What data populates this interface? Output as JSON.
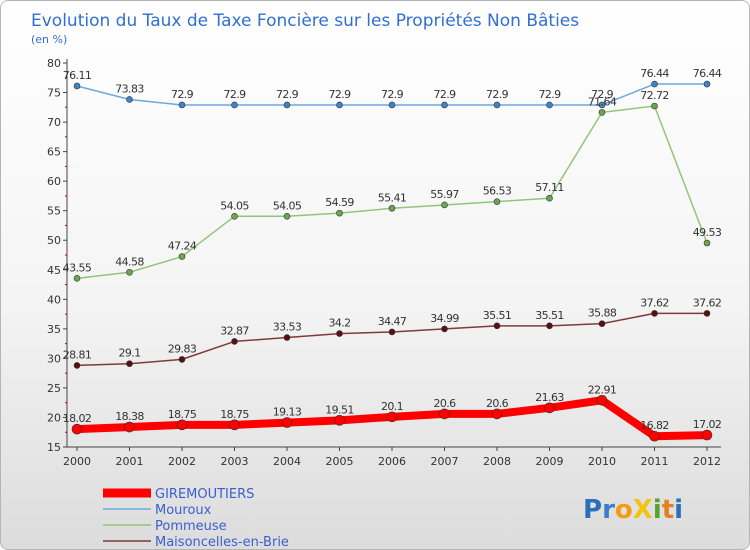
{
  "chart_data": {
    "type": "line",
    "title": "Evolution du Taux de Taxe Foncière sur les Propriétés Non Bâties",
    "subtitle": "(en %)",
    "x": [
      "2000",
      "2001",
      "2002",
      "2003",
      "2004",
      "2005",
      "2006",
      "2007",
      "2008",
      "2009",
      "2010",
      "2011",
      "2012"
    ],
    "ylim": [
      15,
      80
    ],
    "yticks": [
      15,
      20,
      25,
      30,
      35,
      40,
      45,
      50,
      55,
      60,
      65,
      70,
      75,
      80
    ],
    "grid": false,
    "legend_position": "bottom-left",
    "series": [
      {
        "name": "GIREMOUTIERS",
        "color": "#ff0000",
        "width": 8,
        "marker_color": "#ff0000",
        "values": [
          18.02,
          18.38,
          18.75,
          18.75,
          19.13,
          19.51,
          20.1,
          20.6,
          20.6,
          21.63,
          22.91,
          16.82,
          17.02
        ],
        "labels": [
          "18.02",
          "18.38",
          "18.75",
          "18.75",
          "19.13",
          "19.51",
          "20.1",
          "20.6",
          "20.6",
          "21.63",
          "22.91",
          "16.82",
          "17.02"
        ]
      },
      {
        "name": "Mouroux",
        "color": "#6fa8dc",
        "width": 1.5,
        "marker_color": "#3d85c6",
        "values": [
          76.11,
          73.83,
          72.9,
          72.9,
          72.9,
          72.9,
          72.9,
          72.9,
          72.9,
          72.9,
          72.9,
          76.44,
          76.44
        ],
        "labels": [
          "76.11",
          "73.83",
          "72.9",
          "72.9",
          "72.9",
          "72.9",
          "72.9",
          "72.9",
          "72.9",
          "72.9",
          "72.9",
          "76.44",
          "76.44"
        ]
      },
      {
        "name": "Pommeuse",
        "color": "#93c47d",
        "width": 1.5,
        "marker_color": "#6aa84f",
        "values": [
          43.55,
          44.58,
          47.24,
          54.05,
          54.05,
          54.59,
          55.41,
          55.97,
          56.53,
          57.11,
          71.64,
          72.72,
          49.53
        ],
        "labels": [
          "43.55",
          "44.58",
          "47.24",
          "54.05",
          "54.05",
          "54.59",
          "55.41",
          "55.97",
          "56.53",
          "57.11",
          "71.64",
          "72.72",
          "49.53"
        ]
      },
      {
        "name": "Maisoncelles-en-Brie",
        "color": "#7f3b3b",
        "width": 1.5,
        "marker_color": "#5b0f0f",
        "values": [
          28.81,
          29.1,
          29.83,
          32.87,
          33.53,
          34.2,
          34.47,
          34.99,
          35.51,
          35.51,
          35.88,
          37.62,
          37.62
        ],
        "labels": [
          "28.81",
          "29.1",
          "29.83",
          "32.87",
          "33.53",
          "34.2",
          "34.47",
          "34.99",
          "35.51",
          "35.51",
          "35.88",
          "37.62",
          "37.62"
        ]
      }
    ]
  },
  "logo": {
    "text": "ProXiti",
    "letters": [
      "P",
      "r",
      "o",
      "X",
      "i",
      "t",
      "i"
    ],
    "colors": [
      "#2a6fb8",
      "#3a7fc8",
      "#f39c12",
      "#f1c40f",
      "#5aa02c",
      "#e67e22",
      "#2a6fb8"
    ]
  }
}
